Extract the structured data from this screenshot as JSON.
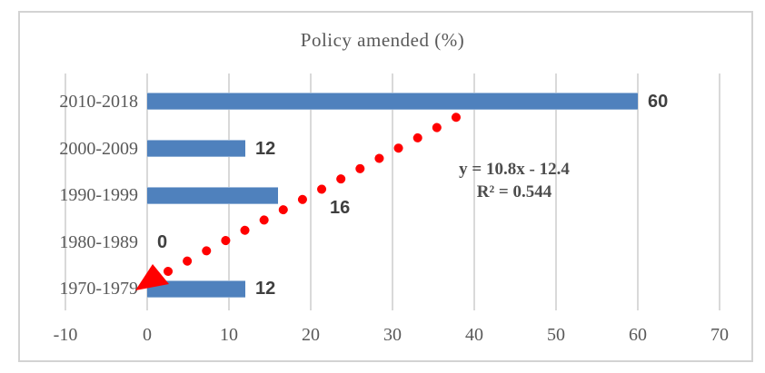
{
  "chart_data": {
    "type": "bar",
    "orientation": "horizontal",
    "title": "Policy amended (%)",
    "categories": [
      "2010-2018",
      "2000-2009",
      "1990-1999",
      "1980-1989",
      "1970-1979"
    ],
    "values": [
      60,
      12,
      16,
      0,
      12
    ],
    "value_labels": [
      "60",
      "12",
      "16",
      "0",
      "12"
    ],
    "xticks": [
      -10,
      0,
      10,
      20,
      30,
      40,
      50,
      60,
      70
    ],
    "xtick_labels": [
      "-10",
      "0",
      "10",
      "20",
      "30",
      "40",
      "50",
      "60",
      "70"
    ],
    "xlim": [
      -10,
      70
    ],
    "xlabel": "",
    "ylabel": "",
    "grid": true,
    "legend": false,
    "bar_color": "#4F81BD",
    "gridline_color": "#D9D9D9",
    "axis_text_color": "#595959",
    "value_label_color": "#3F3F3F",
    "border_color": "#D3D3D3",
    "trendline": {
      "equation": "y = 10.8x - 12.4",
      "r_squared": "R² = 0.544",
      "color": "#FF0000",
      "style": "dotted",
      "arrow": "down-left"
    }
  },
  "layout_hints": {
    "value_label_offsets": {
      "2": [
        46,
        14
      ]
    }
  }
}
